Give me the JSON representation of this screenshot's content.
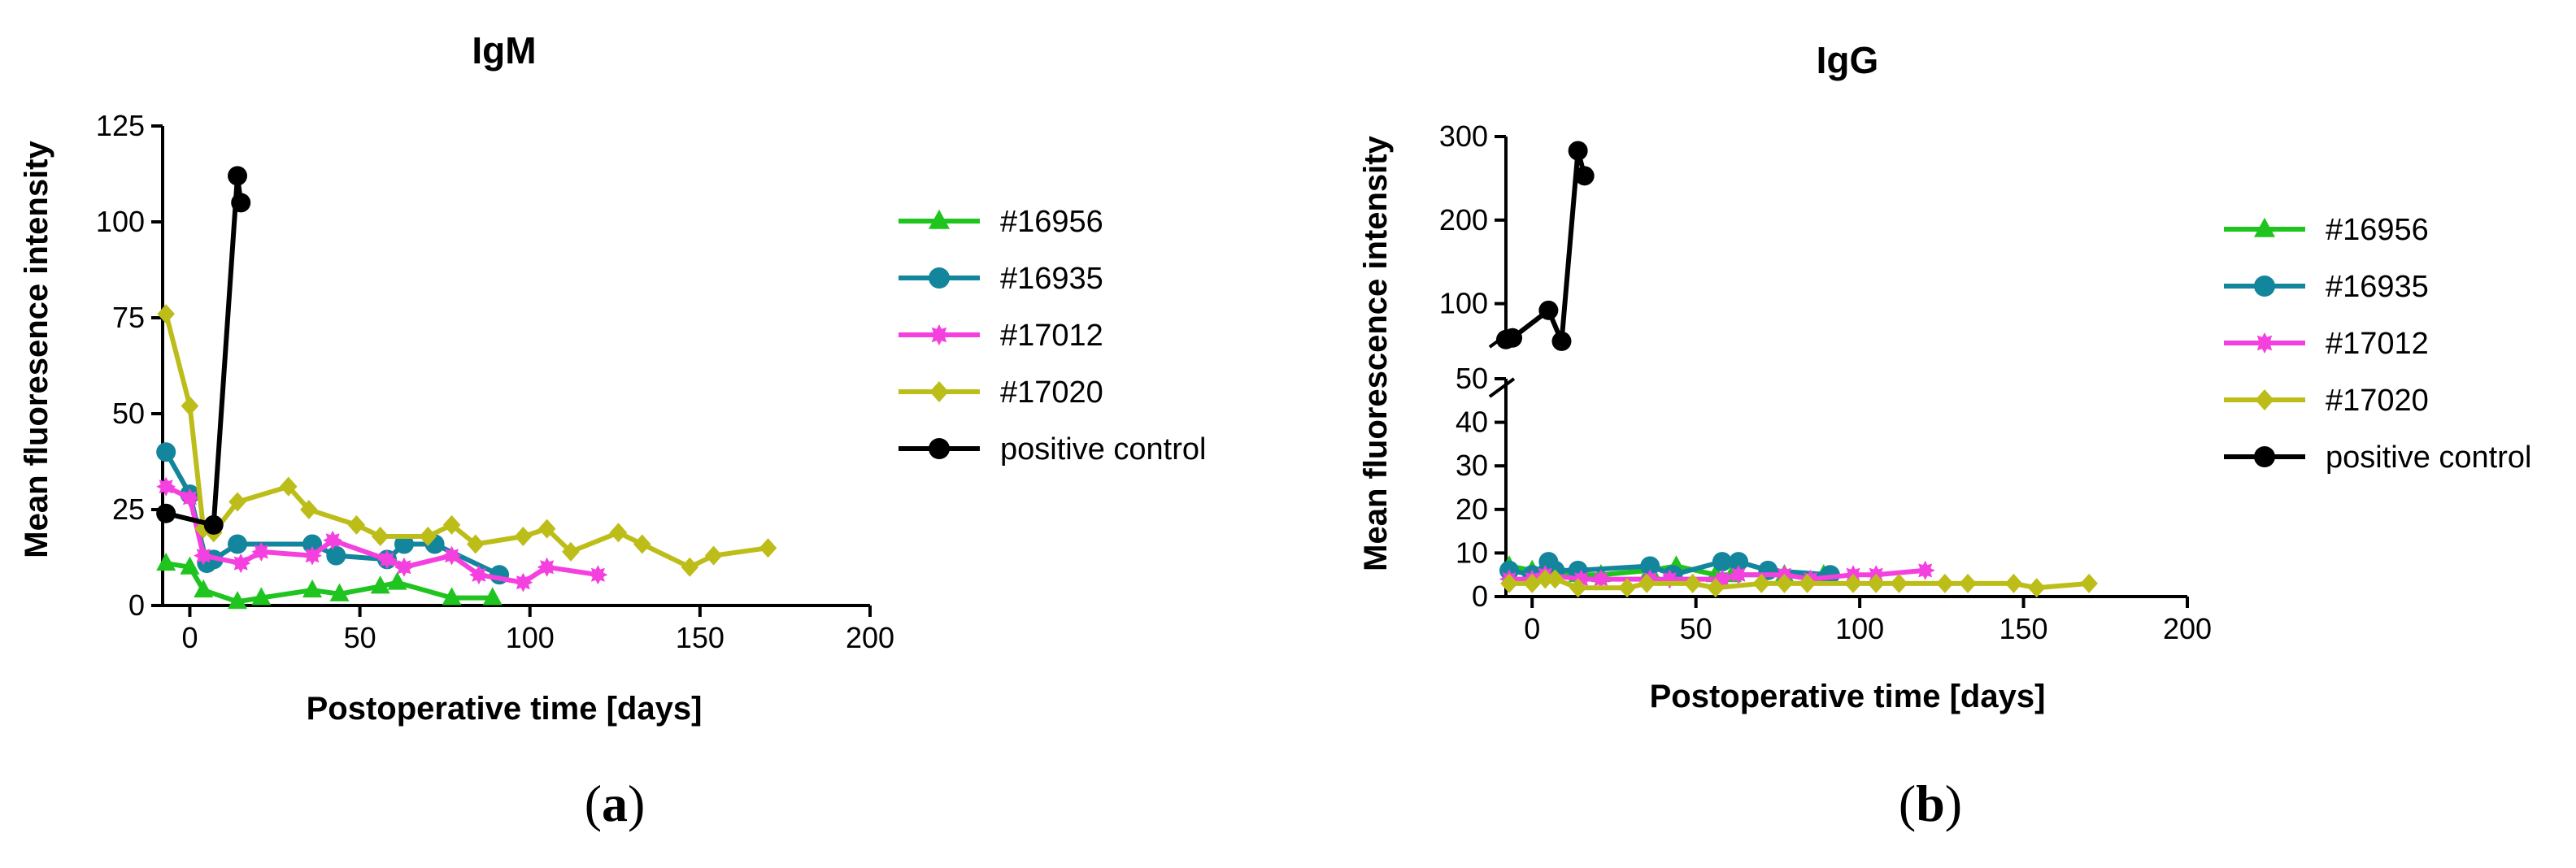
{
  "panels": [
    "a",
    "b"
  ],
  "legend": [
    {
      "name": "#16956",
      "color": "#1fc41f",
      "marker": "triangle"
    },
    {
      "name": "#16935",
      "color": "#13859c",
      "marker": "circle"
    },
    {
      "name": "#17012",
      "color": "#f540e0",
      "marker": "star"
    },
    {
      "name": "#17020",
      "color": "#bdbd1a",
      "marker": "diamond"
    },
    {
      "name": "positive control",
      "color": "#000000",
      "marker": "circle"
    }
  ],
  "chart_data": [
    {
      "type": "line",
      "title": "IgM",
      "xlabel": "Postoperative time [days]",
      "ylabel": "Mean fluoresence intensity",
      "xlim": [
        -8,
        200
      ],
      "ylim": [
        0,
        125
      ],
      "xticks": [
        0,
        50,
        100,
        150,
        200
      ],
      "yticks": [
        0,
        25,
        50,
        75,
        100,
        125
      ],
      "series": [
        {
          "name": "#16956",
          "x": [
            -7,
            0,
            4,
            14,
            21,
            36,
            44,
            56,
            61,
            77,
            89
          ],
          "y": [
            11,
            10,
            4,
            1,
            2,
            4,
            3,
            5,
            6,
            2,
            2
          ]
        },
        {
          "name": "#16935",
          "x": [
            -7,
            0,
            5,
            7,
            14,
            36,
            43,
            58,
            63,
            72,
            91
          ],
          "y": [
            40,
            29,
            11,
            12,
            16,
            16,
            13,
            12,
            16,
            16,
            8
          ]
        },
        {
          "name": "#17012",
          "x": [
            -7,
            0,
            4,
            15,
            21,
            36,
            42,
            58,
            63,
            77,
            85,
            98,
            105,
            120
          ],
          "y": [
            31,
            28,
            13,
            11,
            14,
            13,
            17,
            12,
            10,
            13,
            8,
            6,
            10,
            8
          ]
        },
        {
          "name": "#17020",
          "x": [
            -7,
            0,
            4,
            7,
            14,
            29,
            35,
            49,
            56,
            70,
            77,
            84,
            98,
            105,
            112,
            126,
            133,
            147,
            154,
            170
          ],
          "y": [
            76,
            52,
            20,
            19,
            27,
            31,
            25,
            21,
            18,
            18,
            21,
            16,
            18,
            20,
            14,
            19,
            16,
            10,
            13,
            15
          ]
        },
        {
          "name": "positive control",
          "x": [
            -7,
            7,
            14,
            15
          ],
          "y": [
            24,
            21,
            112,
            105
          ]
        }
      ]
    },
    {
      "type": "line",
      "title": "IgG",
      "xlabel": "Postoperative time [days]",
      "ylabel": "Mean fluorescence intensity",
      "xlim": [
        -8,
        200
      ],
      "ylim_lower": [
        0,
        50
      ],
      "ylim_upper": [
        50,
        300
      ],
      "xticks": [
        0,
        50,
        100,
        150,
        200
      ],
      "yticks_lower": [
        0,
        10,
        20,
        30,
        40,
        50
      ],
      "yticks_upper": [
        100,
        200,
        300
      ],
      "broken_axis": true,
      "series": [
        {
          "name": "#16956",
          "x": [
            -7,
            0,
            7,
            14,
            21,
            36,
            44,
            56,
            61,
            77,
            89
          ],
          "y": [
            7,
            6,
            6,
            5,
            5,
            6,
            7,
            5,
            5,
            5,
            5
          ]
        },
        {
          "name": "#16935",
          "x": [
            -7,
            0,
            5,
            7,
            14,
            36,
            43,
            58,
            63,
            72,
            91
          ],
          "y": [
            6,
            5,
            8,
            6,
            6,
            7,
            5,
            8,
            8,
            6,
            5
          ]
        },
        {
          "name": "#17012",
          "x": [
            -7,
            0,
            4,
            15,
            21,
            36,
            42,
            58,
            63,
            77,
            85,
            98,
            105,
            120
          ],
          "y": [
            4,
            4,
            5,
            4,
            4,
            4,
            4,
            4,
            5,
            5,
            4,
            5,
            5,
            6
          ]
        },
        {
          "name": "#17020",
          "x": [
            -7,
            0,
            4,
            7,
            14,
            29,
            35,
            49,
            56,
            70,
            77,
            84,
            98,
            105,
            112,
            126,
            133,
            147,
            154,
            170
          ],
          "y": [
            3,
            3,
            4,
            4,
            2,
            2,
            3,
            3,
            2,
            3,
            3,
            3,
            3,
            3,
            3,
            3,
            3,
            3,
            2,
            3
          ]
        },
        {
          "name": "positive control",
          "x": [
            -8,
            -6,
            5,
            9,
            14,
            16
          ],
          "y": [
            57,
            59,
            92,
            55,
            283,
            253
          ]
        }
      ]
    }
  ]
}
